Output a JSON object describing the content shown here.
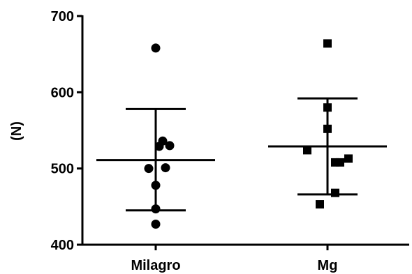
{
  "chart_data": {
    "type": "scatter",
    "title": "",
    "xlabel": "",
    "ylabel": "(N)",
    "ylim": [
      400,
      700
    ],
    "yticks": [
      400,
      500,
      600,
      700
    ],
    "categories": [
      "Milagro",
      "Mg"
    ],
    "grid": false,
    "series": [
      {
        "category": "Milagro",
        "marker": "circle",
        "values": [
          658,
          536,
          529,
          530,
          500,
          501,
          478,
          447,
          427
        ],
        "mean": 511,
        "sd_upper": 578,
        "sd_lower": 445
      },
      {
        "category": "Mg",
        "marker": "square",
        "values": [
          664,
          580,
          552,
          524,
          508,
          508,
          513,
          468,
          453
        ],
        "mean": 529,
        "sd_upper": 592,
        "sd_lower": 466
      }
    ]
  }
}
